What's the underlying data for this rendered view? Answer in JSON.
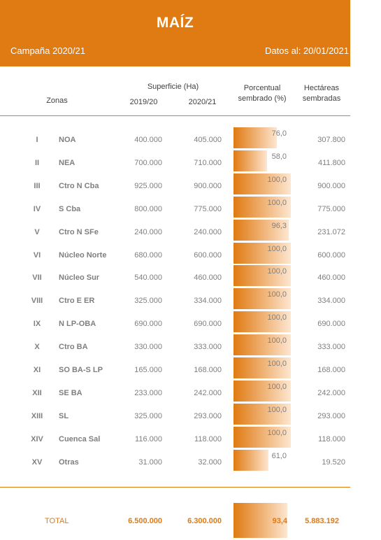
{
  "header": {
    "title": "MAÍZ",
    "campaign": "Campaña 2020/21",
    "date": "Datos al: 20/01/2021"
  },
  "columns": {
    "zonas": "Zonas",
    "superficie": "Superficie (Ha)",
    "y2019": "2019/20",
    "y2020": "2020/21",
    "porcentual_line1": "Porcentual",
    "porcentual_line2": "sembrado (%)",
    "hectareas_line1": "Hectáreas",
    "hectareas_line2": "sembradas"
  },
  "colors": {
    "accent": "#e07a12",
    "text": "#7f7f7f"
  },
  "rows": [
    {
      "roman": "I",
      "zone": "NOA",
      "y2019": "400.000",
      "y2020": "405.000",
      "pct": "76,0",
      "pct_value": 76.0,
      "hect": "307.800"
    },
    {
      "roman": "II",
      "zone": "NEA",
      "y2019": "700.000",
      "y2020": "710.000",
      "pct": "58,0",
      "pct_value": 58.0,
      "hect": "411.800"
    },
    {
      "roman": "III",
      "zone": "Ctro N Cba",
      "y2019": "925.000",
      "y2020": "900.000",
      "pct": "100,0",
      "pct_value": 100.0,
      "hect": "900.000"
    },
    {
      "roman": "IV",
      "zone": "S Cba",
      "y2019": "800.000",
      "y2020": "775.000",
      "pct": "100,0",
      "pct_value": 100.0,
      "hect": "775.000"
    },
    {
      "roman": "V",
      "zone": "Ctro N SFe",
      "y2019": "240.000",
      "y2020": "240.000",
      "pct": "96,3",
      "pct_value": 96.3,
      "hect": "231.072"
    },
    {
      "roman": "VI",
      "zone": "Núcleo Norte",
      "y2019": "680.000",
      "y2020": "600.000",
      "pct": "100,0",
      "pct_value": 100.0,
      "hect": "600.000"
    },
    {
      "roman": "VII",
      "zone": "Núcleo Sur",
      "y2019": "540.000",
      "y2020": "460.000",
      "pct": "100,0",
      "pct_value": 100.0,
      "hect": "460.000"
    },
    {
      "roman": "VIII",
      "zone": "Ctro E ER",
      "y2019": "325.000",
      "y2020": "334.000",
      "pct": "100,0",
      "pct_value": 100.0,
      "hect": "334.000"
    },
    {
      "roman": "IX",
      "zone": "N LP-OBA",
      "y2019": "690.000",
      "y2020": "690.000",
      "pct": "100,0",
      "pct_value": 100.0,
      "hect": "690.000"
    },
    {
      "roman": "X",
      "zone": "Ctro BA",
      "y2019": "330.000",
      "y2020": "333.000",
      "pct": "100,0",
      "pct_value": 100.0,
      "hect": "333.000"
    },
    {
      "roman": "XI",
      "zone": "SO BA-S LP",
      "y2019": "165.000",
      "y2020": "168.000",
      "pct": "100,0",
      "pct_value": 100.0,
      "hect": "168.000"
    },
    {
      "roman": "XII",
      "zone": "SE BA",
      "y2019": "233.000",
      "y2020": "242.000",
      "pct": "100,0",
      "pct_value": 100.0,
      "hect": "242.000"
    },
    {
      "roman": "XIII",
      "zone": "SL",
      "y2019": "325.000",
      "y2020": "293.000",
      "pct": "100,0",
      "pct_value": 100.0,
      "hect": "293.000"
    },
    {
      "roman": "XIV",
      "zone": "Cuenca Sal",
      "y2019": "116.000",
      "y2020": "118.000",
      "pct": "100,0",
      "pct_value": 100.0,
      "hect": "118.000"
    },
    {
      "roman": "XV",
      "zone": "Otras",
      "y2019": "31.000",
      "y2020": "32.000",
      "pct": "61,0",
      "pct_value": 61.0,
      "hect": "19.520"
    }
  ],
  "total": {
    "label": "TOTAL",
    "y2019": "6.500.000",
    "y2020": "6.300.000",
    "pct": "93,4",
    "hect": "5.883.192"
  }
}
